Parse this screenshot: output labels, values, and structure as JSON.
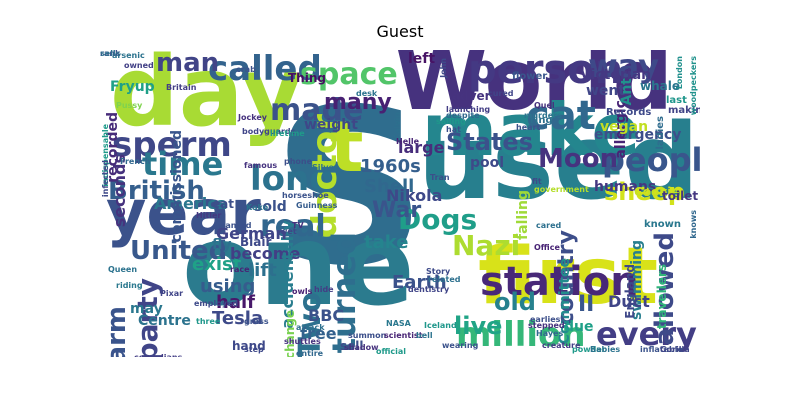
{
  "title": "Guest",
  "words": [
    {
      "text": "S",
      "color": "#2f6d8e"
    },
    {
      "text": "World",
      "color": "#46327e"
    },
    {
      "text": "one",
      "color": "#2b7b8e"
    },
    {
      "text": "used",
      "color": "#277f8e"
    },
    {
      "text": "first",
      "color": "#d8e219"
    },
    {
      "text": "day",
      "color": "#a8db34"
    },
    {
      "text": "make",
      "color": "#24868e"
    },
    {
      "text": "year",
      "color": "#3b528b"
    },
    {
      "text": "t",
      "color": "#bddf26"
    },
    {
      "text": "station",
      "color": "#482878"
    },
    {
      "text": "million",
      "color": "#35b779"
    },
    {
      "text": "person",
      "color": "#443983"
    },
    {
      "text": "called",
      "color": "#33638d"
    },
    {
      "text": "way",
      "color": "#3e4989"
    },
    {
      "text": "space",
      "color": "#52c569"
    },
    {
      "text": "cat",
      "color": "#31688e"
    },
    {
      "text": "sperm",
      "color": "#3f4788"
    },
    {
      "text": "time",
      "color": "#2a788e"
    },
    {
      "text": "made",
      "color": "#3b528b"
    },
    {
      "text": "people",
      "color": "#39568c"
    },
    {
      "text": "every",
      "color": "#433e85"
    },
    {
      "text": "long",
      "color": "#2c728e"
    },
    {
      "text": "British",
      "color": "#355f8d"
    },
    {
      "text": "sheep",
      "color": "#d2e21b"
    },
    {
      "text": "Nazi",
      "color": "#addc30"
    },
    {
      "text": "allowed",
      "color": "#3e4a89"
    },
    {
      "text": "doctor",
      "color": "#b5de2b"
    },
    {
      "text": "real",
      "color": "#31678e"
    },
    {
      "text": "party",
      "color": "#404588"
    },
    {
      "text": "alarm",
      "color": "#3a548c"
    },
    {
      "text": "turned",
      "color": "#2e6e8e"
    },
    {
      "text": "Two",
      "color": "#2d718e"
    },
    {
      "text": "Dogs",
      "color": "#1f9e89"
    },
    {
      "text": "States",
      "color": "#3b518b"
    },
    {
      "text": "Moon",
      "color": "#46337f"
    },
    {
      "text": "United",
      "color": "#38588c"
    },
    {
      "text": "live",
      "color": "#20a486"
    },
    {
      "text": "old",
      "color": "#26818e"
    },
    {
      "text": "country",
      "color": "#3d4e8a"
    },
    {
      "text": "II",
      "color": "#39568c"
    },
    {
      "text": "man",
      "color": "#414487"
    },
    {
      "text": "many",
      "color": "#482173"
    },
    {
      "text": "War",
      "color": "#3a548c"
    },
    {
      "text": "Earth",
      "color": "#3b528b"
    },
    {
      "text": "Tesla",
      "color": "#3e4a89"
    },
    {
      "text": "half",
      "color": "#48186a"
    },
    {
      "text": "using",
      "color": "#365c8d"
    },
    {
      "text": "lift",
      "color": "#2d708e"
    },
    {
      "text": "exist",
      "color": "#1fa187"
    },
    {
      "text": "become",
      "color": "#423f85"
    },
    {
      "text": "accidentally",
      "color": "#287d8e"
    },
    {
      "text": "take",
      "color": "#25848e"
    },
    {
      "text": "BBC",
      "color": "#3b528b"
    },
    {
      "text": "free",
      "color": "#34618d"
    },
    {
      "text": "1960s",
      "color": "#355f8d"
    },
    {
      "text": "Shell",
      "color": "#31688e"
    },
    {
      "text": "Nikola",
      "color": "#3e4989"
    },
    {
      "text": "German",
      "color": "#404588"
    },
    {
      "text": "America",
      "color": "#2a778e"
    },
    {
      "text": "sold",
      "color": "#3b528b"
    },
    {
      "text": "seconds",
      "color": "#46327e"
    },
    {
      "text": "weight",
      "color": "#3f4788"
    },
    {
      "text": "recorded",
      "color": "#472c7a"
    },
    {
      "text": "commissioned",
      "color": "#39558c"
    },
    {
      "text": "Fryup",
      "color": "#1fa088"
    },
    {
      "text": "large",
      "color": "#472d7b"
    },
    {
      "text": "emergency",
      "color": "#3c4f8a"
    },
    {
      "text": "allergic",
      "color": "#482475"
    },
    {
      "text": "humans",
      "color": "#453781"
    },
    {
      "text": "vegan",
      "color": "#c2df23"
    },
    {
      "text": "went",
      "color": "#404688"
    },
    {
      "text": "Ant",
      "color": "#21918c"
    },
    {
      "text": "Victorian",
      "color": "#453882"
    },
    {
      "text": "whale",
      "color": "#2a768e"
    },
    {
      "text": "pool",
      "color": "#3e4a89"
    },
    {
      "text": "left",
      "color": "#471365"
    },
    {
      "text": "advert",
      "color": "#46337f"
    },
    {
      "text": "Thing",
      "color": "#470e61"
    },
    {
      "text": "falling",
      "color": "#a0da39"
    },
    {
      "text": "Cookie",
      "color": "#c8e020"
    },
    {
      "text": "swimming",
      "color": "#277e8e"
    },
    {
      "text": "Committee",
      "color": "#228c8d"
    },
    {
      "text": "Duct",
      "color": "#404588"
    },
    {
      "text": "due",
      "color": "#1fa088"
    },
    {
      "text": "England",
      "color": "#3f4889"
    },
    {
      "text": "travellers",
      "color": "#30b57a"
    },
    {
      "text": "fly",
      "color": "#2d718e"
    },
    {
      "text": "Blair",
      "color": "#3e4989"
    },
    {
      "text": "eat",
      "color": "#3c4f8a"
    },
    {
      "text": "Centre",
      "color": "#2c738e"
    },
    {
      "text": "may",
      "color": "#2a778e"
    },
    {
      "text": "hand",
      "color": "#3e4989"
    },
    {
      "text": "change",
      "color": "#7ad151"
    },
    {
      "text": "sell",
      "color": "#3d4e8a"
    },
    {
      "text": "toilet",
      "color": "#453781"
    },
    {
      "text": "known",
      "color": "#2a788e"
    },
    {
      "text": "flower",
      "color": "#39568c"
    },
    {
      "text": "ring",
      "color": "#2d708e"
    },
    {
      "text": "Records",
      "color": "#3e4989"
    },
    {
      "text": "ladies",
      "color": "#2f6c8e"
    },
    {
      "text": "making",
      "color": "#414487"
    },
    {
      "text": "last",
      "color": "#1f968b"
    },
    {
      "text": "London",
      "color": "#21908d"
    },
    {
      "text": "woodpeckers",
      "color": "#20928c"
    },
    {
      "text": "arsenic",
      "color": "#2c738e"
    },
    {
      "text": "owned",
      "color": "#424086"
    },
    {
      "text": "Britain",
      "color": "#433e85"
    },
    {
      "text": "Pussy",
      "color": "#7fd34e"
    },
    {
      "text": "indispensable",
      "color": "#1e9b8a"
    },
    {
      "text": "Hitler",
      "color": "#453882"
    },
    {
      "text": "Koko",
      "color": "#2c738e"
    },
    {
      "text": "famous",
      "color": "#46337f"
    },
    {
      "text": "wanted",
      "color": "#3b518b"
    },
    {
      "text": "race",
      "color": "#482475"
    },
    {
      "text": "phone",
      "color": "#3c4f8a"
    },
    {
      "text": "Silver",
      "color": "#2d708e"
    },
    {
      "text": "Guinness",
      "color": "#365c8d"
    },
    {
      "text": "horseshoe",
      "color": "#3b528b"
    },
    {
      "text": "TV",
      "color": "#46327e"
    },
    {
      "text": "wet",
      "color": "#3f4788"
    },
    {
      "text": "riding",
      "color": "#2a788e"
    },
    {
      "text": "Pixar",
      "color": "#404588"
    },
    {
      "text": "Queen",
      "color": "#2c738e"
    },
    {
      "text": "employed",
      "color": "#3e4a89"
    },
    {
      "text": "three",
      "color": "#1f978b"
    },
    {
      "text": "owls",
      "color": "#482173"
    },
    {
      "text": "grass",
      "color": "#3b528b"
    },
    {
      "text": "shuttles",
      "color": "#46337f"
    },
    {
      "text": "step",
      "color": "#3e4989"
    },
    {
      "text": "entire",
      "color": "#31688e"
    },
    {
      "text": "attack",
      "color": "#2d708e"
    },
    {
      "text": "summon",
      "color": "#3c4f8a"
    },
    {
      "text": "comedians",
      "color": "#433e85"
    },
    {
      "text": "official",
      "color": "#1f9a8a"
    },
    {
      "text": "scientist",
      "color": "#482475"
    },
    {
      "text": "shadow",
      "color": "#46327e"
    },
    {
      "text": "wearing",
      "color": "#3b528b"
    },
    {
      "text": "bell",
      "color": "#2c738e"
    },
    {
      "text": "Iceland",
      "color": "#1f978b"
    },
    {
      "text": "NASA",
      "color": "#2a788e"
    },
    {
      "text": "dentistry",
      "color": "#404588"
    },
    {
      "text": "Story",
      "color": "#3e4a89"
    },
    {
      "text": "related",
      "color": "#2d708e"
    },
    {
      "text": "earliest",
      "color": "#3c4f8a"
    },
    {
      "text": "Hayes",
      "color": "#31688e"
    },
    {
      "text": "stepped",
      "color": "#46327e"
    },
    {
      "text": "creature",
      "color": "#433e85"
    },
    {
      "text": "powder",
      "color": "#1f9a8a"
    },
    {
      "text": "inflatable",
      "color": "#3b528b"
    },
    {
      "text": "Babies",
      "color": "#2c738e"
    },
    {
      "text": "Gorilla",
      "color": "#404588"
    },
    {
      "text": "government",
      "color": "#b5de2b"
    },
    {
      "text": "fit",
      "color": "#3e4989"
    },
    {
      "text": "Tran",
      "color": "#3c4f8a"
    },
    {
      "text": "cared",
      "color": "#2d708e"
    },
    {
      "text": "Office",
      "color": "#482475"
    },
    {
      "text": "knows",
      "color": "#31688e"
    },
    {
      "text": "Jockey",
      "color": "#46327e"
    },
    {
      "text": "bodyguards",
      "color": "#404588"
    },
    {
      "text": "crab",
      "color": "#3b528b"
    },
    {
      "text": "desk",
      "color": "#2c738e"
    },
    {
      "text": "John",
      "color": "#3e4a89"
    },
    {
      "text": "launching",
      "color": "#433e85"
    },
    {
      "text": "sailing",
      "color": "#1f978b"
    },
    {
      "text": "hat",
      "color": "#3c4f8a"
    },
    {
      "text": "despite",
      "color": "#31688e"
    },
    {
      "text": "Calvin",
      "color": "#2d708e"
    },
    {
      "text": "Helle",
      "color": "#482475"
    },
    {
      "text": "Quel",
      "color": "#46327e"
    },
    {
      "text": "heart",
      "color": "#3b528b"
    },
    {
      "text": "cured",
      "color": "#404588"
    },
    {
      "text": "murders",
      "color": "#2c738e"
    },
    {
      "text": "infected",
      "color": "#3e4989"
    },
    {
      "text": "French",
      "color": "#31688e"
    },
    {
      "text": "lifetime",
      "color": "#1f9a8a"
    },
    {
      "text": "hide",
      "color": "#433e85"
    },
    {
      "text": "rank",
      "color": "#3c4f8a"
    },
    {
      "text": "sells",
      "color": "#2d708e"
    }
  ]
}
